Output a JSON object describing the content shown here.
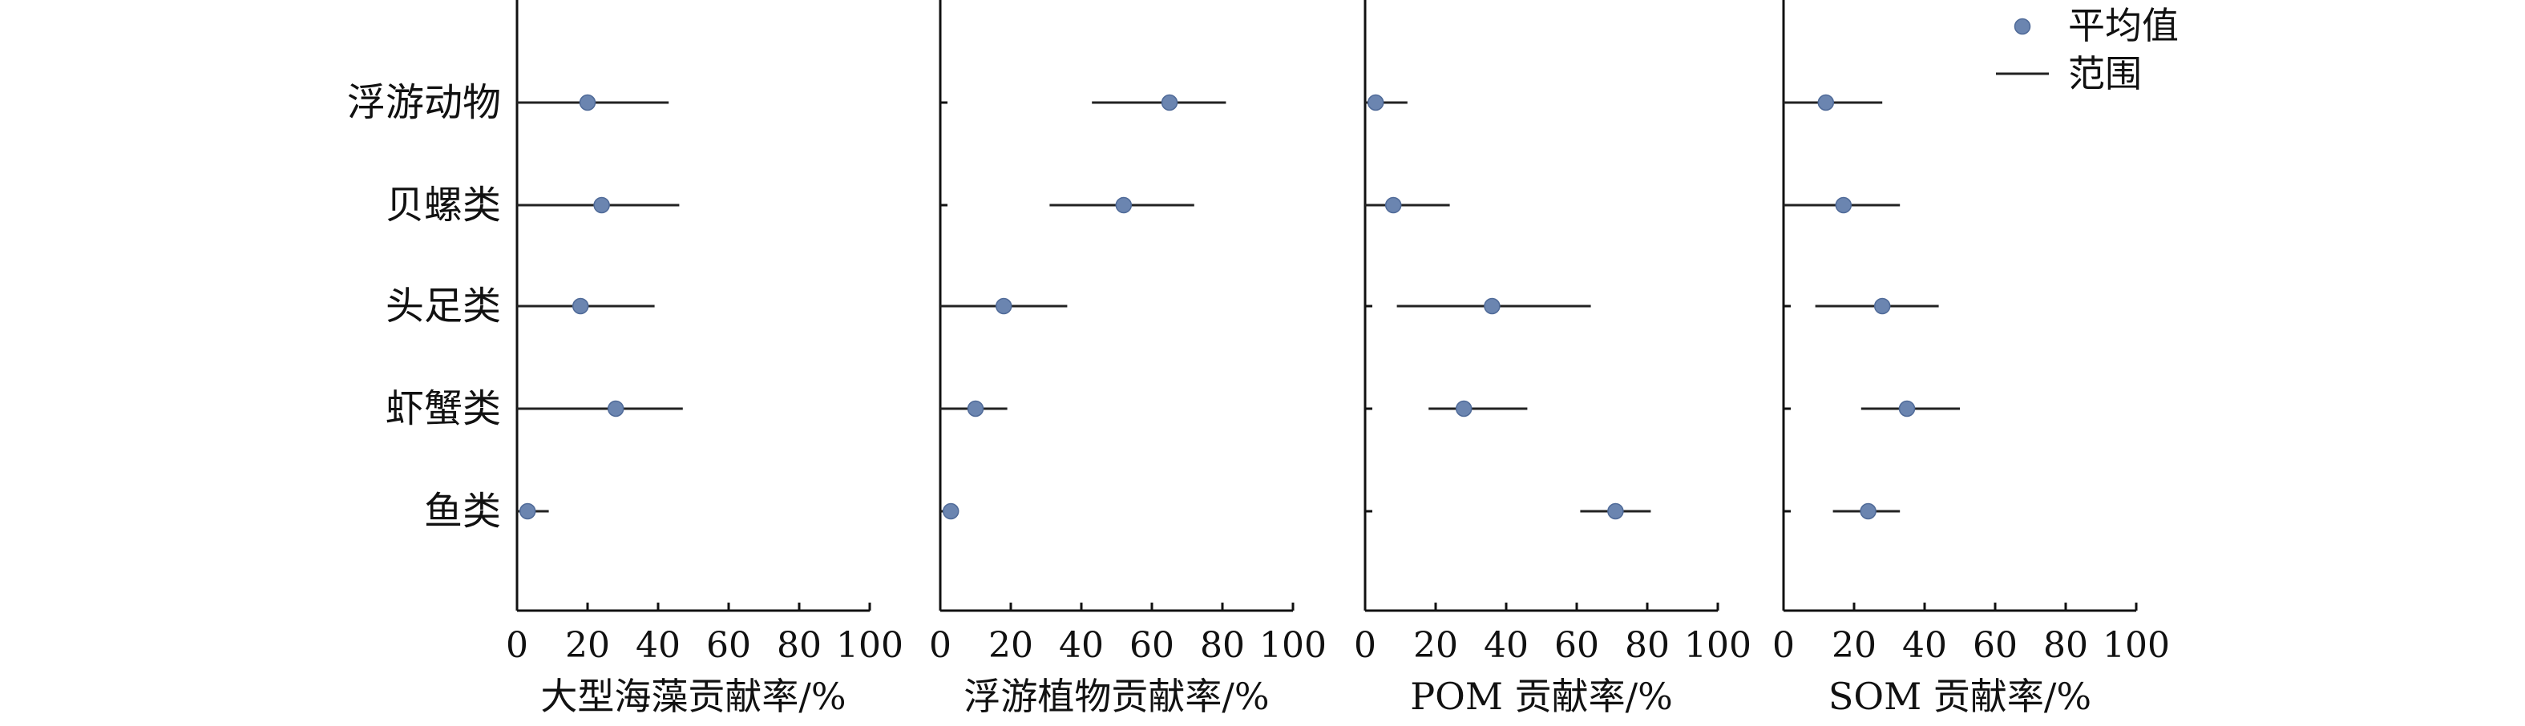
{
  "chart_data": {
    "type": "scatter",
    "categories": [
      "浮游动物",
      "贝螺类",
      "头足类",
      "虾蟹类",
      "鱼类"
    ],
    "x_ticks": [
      0,
      20,
      40,
      60,
      80,
      100
    ],
    "xlim": [
      0,
      100
    ],
    "legend": {
      "placement": "top-right",
      "mean_label": "平均值",
      "range_label": "范围"
    },
    "colors": {
      "marker": "#6b85b0",
      "line": "#222222",
      "axis": "#111111"
    },
    "panels": [
      {
        "xlabel": "大型海藻贡献率/%",
        "series": [
          {
            "category": "浮游动物",
            "mean": 20,
            "min": 0,
            "max": 43
          },
          {
            "category": "贝螺类",
            "mean": 24,
            "min": 0,
            "max": 46
          },
          {
            "category": "头足类",
            "mean": 18,
            "min": 0,
            "max": 39
          },
          {
            "category": "虾蟹类",
            "mean": 28,
            "min": 0,
            "max": 47
          },
          {
            "category": "鱼类",
            "mean": 3,
            "min": 0,
            "max": 9
          }
        ]
      },
      {
        "xlabel": "浮游植物贡献率/%",
        "series": [
          {
            "category": "浮游动物",
            "mean": 65,
            "min": 43,
            "max": 81
          },
          {
            "category": "贝螺类",
            "mean": 52,
            "min": 31,
            "max": 72
          },
          {
            "category": "头足类",
            "mean": 18,
            "min": 0,
            "max": 36
          },
          {
            "category": "虾蟹类",
            "mean": 10,
            "min": 0,
            "max": 19
          },
          {
            "category": "鱼类",
            "mean": 3,
            "min": 0,
            "max": 5
          }
        ]
      },
      {
        "xlabel": "POM 贡献率/%",
        "series": [
          {
            "category": "浮游动物",
            "mean": 3,
            "min": 0,
            "max": 12
          },
          {
            "category": "贝螺类",
            "mean": 8,
            "min": 0,
            "max": 24
          },
          {
            "category": "头足类",
            "mean": 36,
            "min": 9,
            "max": 64
          },
          {
            "category": "虾蟹类",
            "mean": 28,
            "min": 18,
            "max": 46
          },
          {
            "category": "鱼类",
            "mean": 71,
            "min": 61,
            "max": 81
          }
        ]
      },
      {
        "xlabel": "SOM 贡献率/%",
        "series": [
          {
            "category": "浮游动物",
            "mean": 12,
            "min": 0,
            "max": 28
          },
          {
            "category": "贝螺类",
            "mean": 17,
            "min": 0,
            "max": 33
          },
          {
            "category": "头足类",
            "mean": 28,
            "min": 9,
            "max": 44
          },
          {
            "category": "虾蟹类",
            "mean": 35,
            "min": 22,
            "max": 50
          },
          {
            "category": "鱼类",
            "mean": 24,
            "min": 14,
            "max": 33
          }
        ]
      }
    ]
  }
}
